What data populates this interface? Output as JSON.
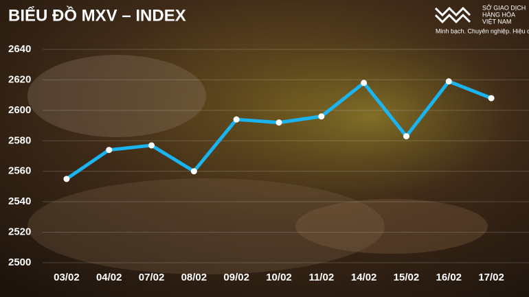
{
  "chart_data": {
    "type": "line",
    "title": "BIỂU ĐỒ MXV – INDEX",
    "categories": [
      "03/02",
      "04/02",
      "07/02",
      "08/02",
      "09/02",
      "10/02",
      "11/02",
      "14/02",
      "15/02",
      "16/02",
      "17/02"
    ],
    "values": [
      2555,
      2574,
      2577,
      2560,
      2594,
      2592,
      2596,
      2618,
      2583,
      2619,
      2608
    ],
    "color": "#1ab4f0",
    "ylim": [
      2500,
      2640
    ],
    "yticks": [
      2500,
      2520,
      2540,
      2560,
      2580,
      2600,
      2620,
      2640
    ],
    "grid": true
  },
  "logo": {
    "lines": [
      "SỞ GIAO DỊCH",
      "HÀNG HÓA",
      "VIỆT NAM"
    ],
    "tagline": "Minh bạch. Chuyên nghiệp. Hiệu quả"
  }
}
